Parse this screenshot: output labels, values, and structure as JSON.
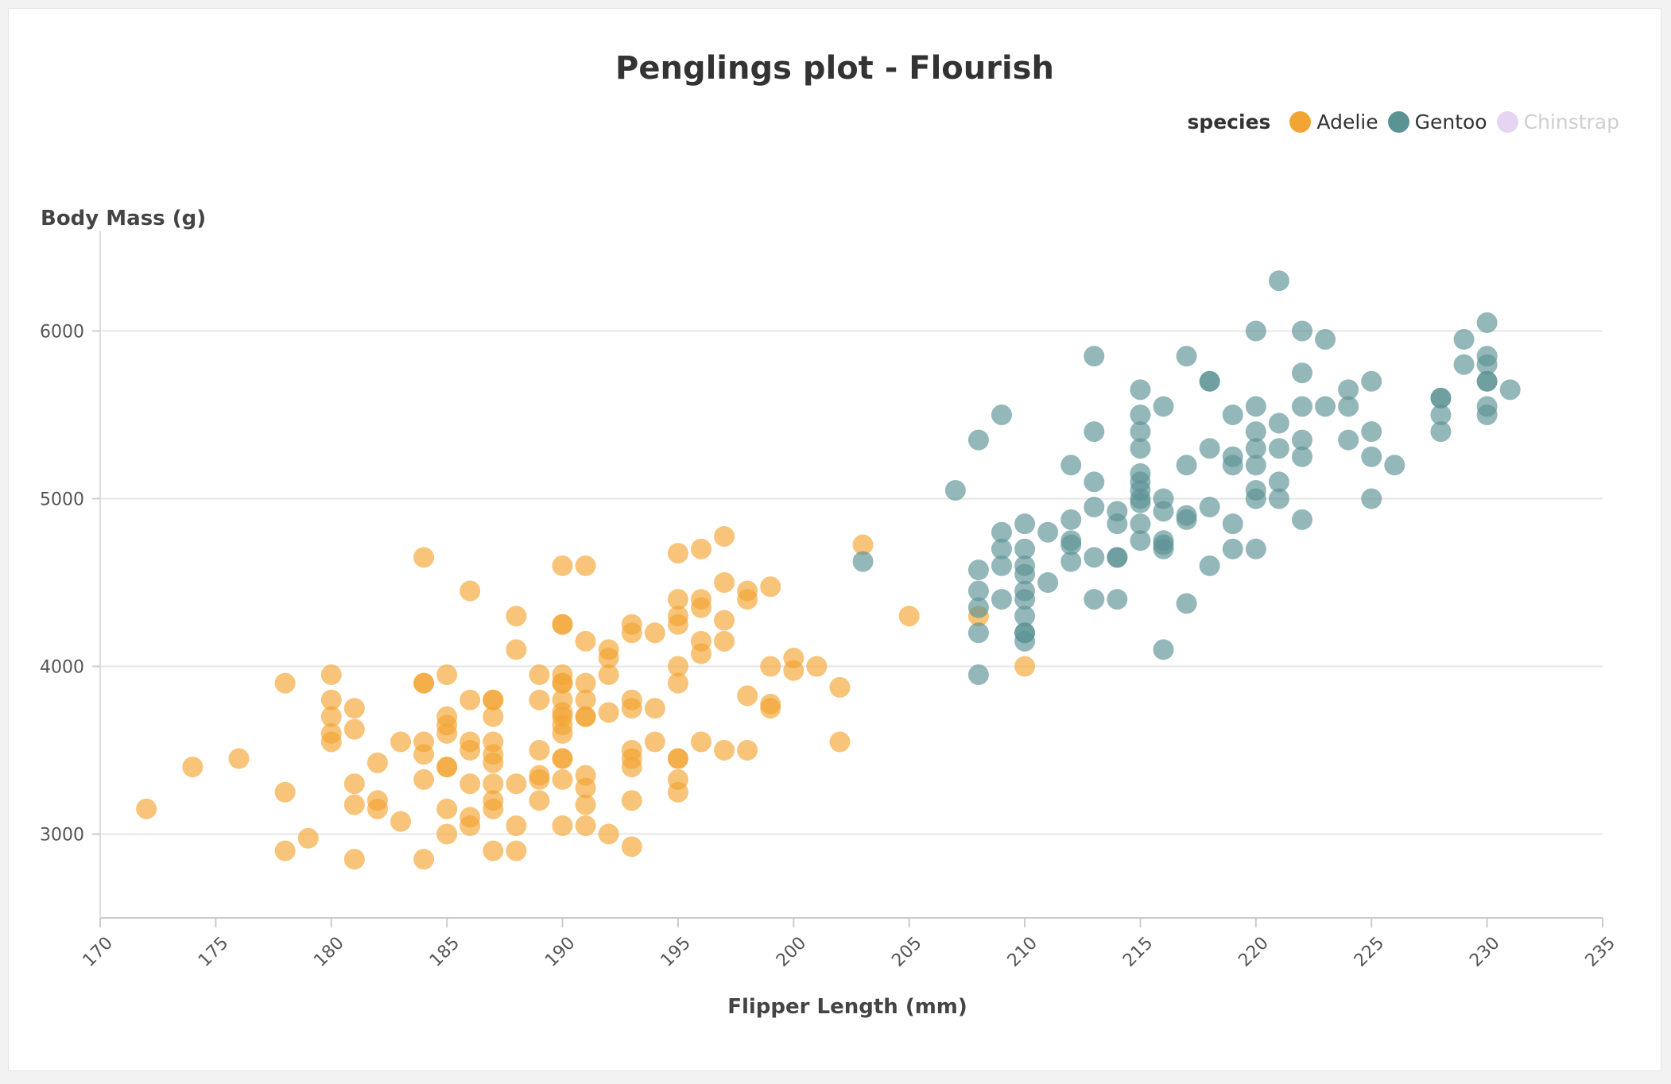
{
  "chart_data": {
    "type": "scatter",
    "title": "Penglings plot - Flourish",
    "xlabel": "Flipper Length (mm)",
    "ylabel": "Body Mass (g)",
    "xlim": [
      170,
      235
    ],
    "ylim": [
      2500,
      6500
    ],
    "xticks": [
      "170",
      "175",
      "180",
      "185",
      "190",
      "195",
      "200",
      "205",
      "210",
      "215",
      "220",
      "225",
      "230",
      "235"
    ],
    "yticks": [
      "3000",
      "4000",
      "5000",
      "6000"
    ],
    "grid": "horizontal",
    "legend_placement": "top-right",
    "legend": {
      "title": "species",
      "items": [
        {
          "label": "Adelie",
          "color": "#f2a533",
          "active": true
        },
        {
          "label": "Gentoo",
          "color": "#5b9293",
          "active": true
        },
        {
          "label": "Chinstrap",
          "color": "#e5d5f2",
          "active": false
        }
      ]
    },
    "series": [
      {
        "name": "Adelie",
        "color": "#f2a533",
        "points": [
          [
            172,
            3150
          ],
          [
            174,
            3400
          ],
          [
            176,
            3450
          ],
          [
            178,
            3900
          ],
          [
            178,
            3250
          ],
          [
            178,
            2900
          ],
          [
            179,
            2975
          ],
          [
            180,
            3950
          ],
          [
            180,
            3800
          ],
          [
            180,
            3700
          ],
          [
            180,
            3600
          ],
          [
            180,
            3550
          ],
          [
            181,
            3750
          ],
          [
            181,
            3625
          ],
          [
            181,
            3300
          ],
          [
            181,
            3175
          ],
          [
            181,
            2850
          ],
          [
            182,
            3425
          ],
          [
            182,
            3200
          ],
          [
            182,
            3150
          ],
          [
            183,
            3550
          ],
          [
            183,
            3075
          ],
          [
            184,
            4650
          ],
          [
            184,
            3900
          ],
          [
            184,
            3900
          ],
          [
            184,
            3550
          ],
          [
            184,
            3475
          ],
          [
            184,
            3325
          ],
          [
            184,
            2850
          ],
          [
            185,
            3950
          ],
          [
            185,
            3700
          ],
          [
            185,
            3650
          ],
          [
            185,
            3600
          ],
          [
            185,
            3400
          ],
          [
            185,
            3400
          ],
          [
            185,
            3150
          ],
          [
            185,
            3000
          ],
          [
            186,
            4450
          ],
          [
            186,
            3800
          ],
          [
            186,
            3550
          ],
          [
            186,
            3500
          ],
          [
            186,
            3300
          ],
          [
            186,
            3100
          ],
          [
            186,
            3050
          ],
          [
            187,
            3800
          ],
          [
            187,
            3800
          ],
          [
            187,
            3700
          ],
          [
            187,
            3550
          ],
          [
            187,
            3475
          ],
          [
            187,
            3425
          ],
          [
            187,
            3300
          ],
          [
            187,
            3200
          ],
          [
            187,
            3150
          ],
          [
            187,
            2900
          ],
          [
            188,
            4300
          ],
          [
            188,
            4100
          ],
          [
            188,
            3300
          ],
          [
            188,
            3050
          ],
          [
            188,
            2900
          ],
          [
            189,
            3950
          ],
          [
            189,
            3800
          ],
          [
            189,
            3500
          ],
          [
            189,
            3350
          ],
          [
            189,
            3325
          ],
          [
            189,
            3200
          ],
          [
            190,
            4600
          ],
          [
            190,
            4250
          ],
          [
            190,
            4250
          ],
          [
            190,
            3950
          ],
          [
            190,
            3900
          ],
          [
            190,
            3900
          ],
          [
            190,
            3800
          ],
          [
            190,
            3725
          ],
          [
            190,
            3700
          ],
          [
            190,
            3650
          ],
          [
            190,
            3600
          ],
          [
            190,
            3450
          ],
          [
            190,
            3450
          ],
          [
            190,
            3325
          ],
          [
            190,
            3050
          ],
          [
            191,
            4600
          ],
          [
            191,
            4150
          ],
          [
            191,
            3900
          ],
          [
            191,
            3800
          ],
          [
            191,
            3700
          ],
          [
            191,
            3700
          ],
          [
            191,
            3350
          ],
          [
            191,
            3275
          ],
          [
            191,
            3175
          ],
          [
            191,
            3050
          ],
          [
            192,
            4100
          ],
          [
            192,
            4050
          ],
          [
            192,
            3950
          ],
          [
            192,
            3725
          ],
          [
            192,
            3000
          ],
          [
            193,
            4250
          ],
          [
            193,
            4200
          ],
          [
            193,
            3800
          ],
          [
            193,
            3750
          ],
          [
            193,
            3500
          ],
          [
            193,
            3450
          ],
          [
            193,
            3400
          ],
          [
            193,
            3200
          ],
          [
            193,
            2925
          ],
          [
            194,
            4200
          ],
          [
            194,
            3750
          ],
          [
            194,
            3550
          ],
          [
            195,
            4675
          ],
          [
            195,
            4400
          ],
          [
            195,
            4300
          ],
          [
            195,
            4250
          ],
          [
            195,
            4000
          ],
          [
            195,
            3900
          ],
          [
            195,
            3450
          ],
          [
            195,
            3450
          ],
          [
            195,
            3325
          ],
          [
            195,
            3250
          ],
          [
            196,
            4700
          ],
          [
            196,
            4400
          ],
          [
            196,
            4350
          ],
          [
            196,
            4150
          ],
          [
            196,
            4075
          ],
          [
            196,
            3550
          ],
          [
            197,
            4775
          ],
          [
            197,
            4500
          ],
          [
            197,
            4275
          ],
          [
            197,
            4150
          ],
          [
            197,
            3500
          ],
          [
            198,
            4450
          ],
          [
            198,
            4400
          ],
          [
            198,
            3825
          ],
          [
            198,
            3500
          ],
          [
            199,
            4475
          ],
          [
            199,
            4000
          ],
          [
            199,
            3775
          ],
          [
            199,
            3750
          ],
          [
            200,
            4050
          ],
          [
            200,
            3975
          ],
          [
            201,
            4000
          ],
          [
            202,
            3875
          ],
          [
            202,
            3550
          ],
          [
            203,
            4725
          ],
          [
            205,
            4300
          ],
          [
            208,
            4300
          ],
          [
            210,
            4000
          ]
        ]
      },
      {
        "name": "Gentoo",
        "color": "#5b9293",
        "points": [
          [
            203,
            4625
          ],
          [
            207,
            5050
          ],
          [
            208,
            5350
          ],
          [
            208,
            4575
          ],
          [
            208,
            4450
          ],
          [
            208,
            4350
          ],
          [
            208,
            4200
          ],
          [
            208,
            3950
          ],
          [
            209,
            5500
          ],
          [
            209,
            4800
          ],
          [
            209,
            4700
          ],
          [
            209,
            4600
          ],
          [
            209,
            4400
          ],
          [
            210,
            4850
          ],
          [
            210,
            4700
          ],
          [
            210,
            4600
          ],
          [
            210,
            4550
          ],
          [
            210,
            4450
          ],
          [
            210,
            4400
          ],
          [
            210,
            4300
          ],
          [
            210,
            4200
          ],
          [
            210,
            4200
          ],
          [
            210,
            4150
          ],
          [
            211,
            4800
          ],
          [
            211,
            4500
          ],
          [
            212,
            5200
          ],
          [
            212,
            4875
          ],
          [
            212,
            4750
          ],
          [
            212,
            4725
          ],
          [
            212,
            4625
          ],
          [
            213,
            5850
          ],
          [
            213,
            5400
          ],
          [
            213,
            5100
          ],
          [
            213,
            4950
          ],
          [
            213,
            4650
          ],
          [
            213,
            4400
          ],
          [
            214,
            4925
          ],
          [
            214,
            4850
          ],
          [
            214,
            4650
          ],
          [
            214,
            4650
          ],
          [
            214,
            4400
          ],
          [
            215,
            5650
          ],
          [
            215,
            5500
          ],
          [
            215,
            5400
          ],
          [
            215,
            5300
          ],
          [
            215,
            5150
          ],
          [
            215,
            5100
          ],
          [
            215,
            5050
          ],
          [
            215,
            5000
          ],
          [
            215,
            4975
          ],
          [
            215,
            4850
          ],
          [
            215,
            4750
          ],
          [
            216,
            5550
          ],
          [
            216,
            5000
          ],
          [
            216,
            4925
          ],
          [
            216,
            4750
          ],
          [
            216,
            4725
          ],
          [
            216,
            4700
          ],
          [
            216,
            4100
          ],
          [
            217,
            5850
          ],
          [
            217,
            5200
          ],
          [
            217,
            4900
          ],
          [
            217,
            4875
          ],
          [
            217,
            4375
          ],
          [
            218,
            5700
          ],
          [
            218,
            5700
          ],
          [
            218,
            5300
          ],
          [
            218,
            4950
          ],
          [
            218,
            4600
          ],
          [
            219,
            5500
          ],
          [
            219,
            5250
          ],
          [
            219,
            5200
          ],
          [
            219,
            4850
          ],
          [
            219,
            4700
          ],
          [
            220,
            6000
          ],
          [
            220,
            5550
          ],
          [
            220,
            5400
          ],
          [
            220,
            5300
          ],
          [
            220,
            5200
          ],
          [
            220,
            5050
          ],
          [
            220,
            5000
          ],
          [
            220,
            4700
          ],
          [
            221,
            6300
          ],
          [
            221,
            5450
          ],
          [
            221,
            5300
          ],
          [
            221,
            5100
          ],
          [
            221,
            5000
          ],
          [
            222,
            6000
          ],
          [
            222,
            5750
          ],
          [
            222,
            5550
          ],
          [
            222,
            5350
          ],
          [
            222,
            5250
          ],
          [
            222,
            4875
          ],
          [
            223,
            5950
          ],
          [
            223,
            5550
          ],
          [
            224,
            5650
          ],
          [
            224,
            5550
          ],
          [
            224,
            5350
          ],
          [
            225,
            5700
          ],
          [
            225,
            5400
          ],
          [
            225,
            5250
          ],
          [
            225,
            5000
          ],
          [
            226,
            5200
          ],
          [
            228,
            5600
          ],
          [
            228,
            5600
          ],
          [
            228,
            5500
          ],
          [
            228,
            5400
          ],
          [
            229,
            5950
          ],
          [
            229,
            5800
          ],
          [
            230,
            6050
          ],
          [
            230,
            5850
          ],
          [
            230,
            5800
          ],
          [
            230,
            5700
          ],
          [
            230,
            5700
          ],
          [
            230,
            5550
          ],
          [
            230,
            5500
          ],
          [
            231,
            5650
          ]
        ]
      }
    ]
  }
}
